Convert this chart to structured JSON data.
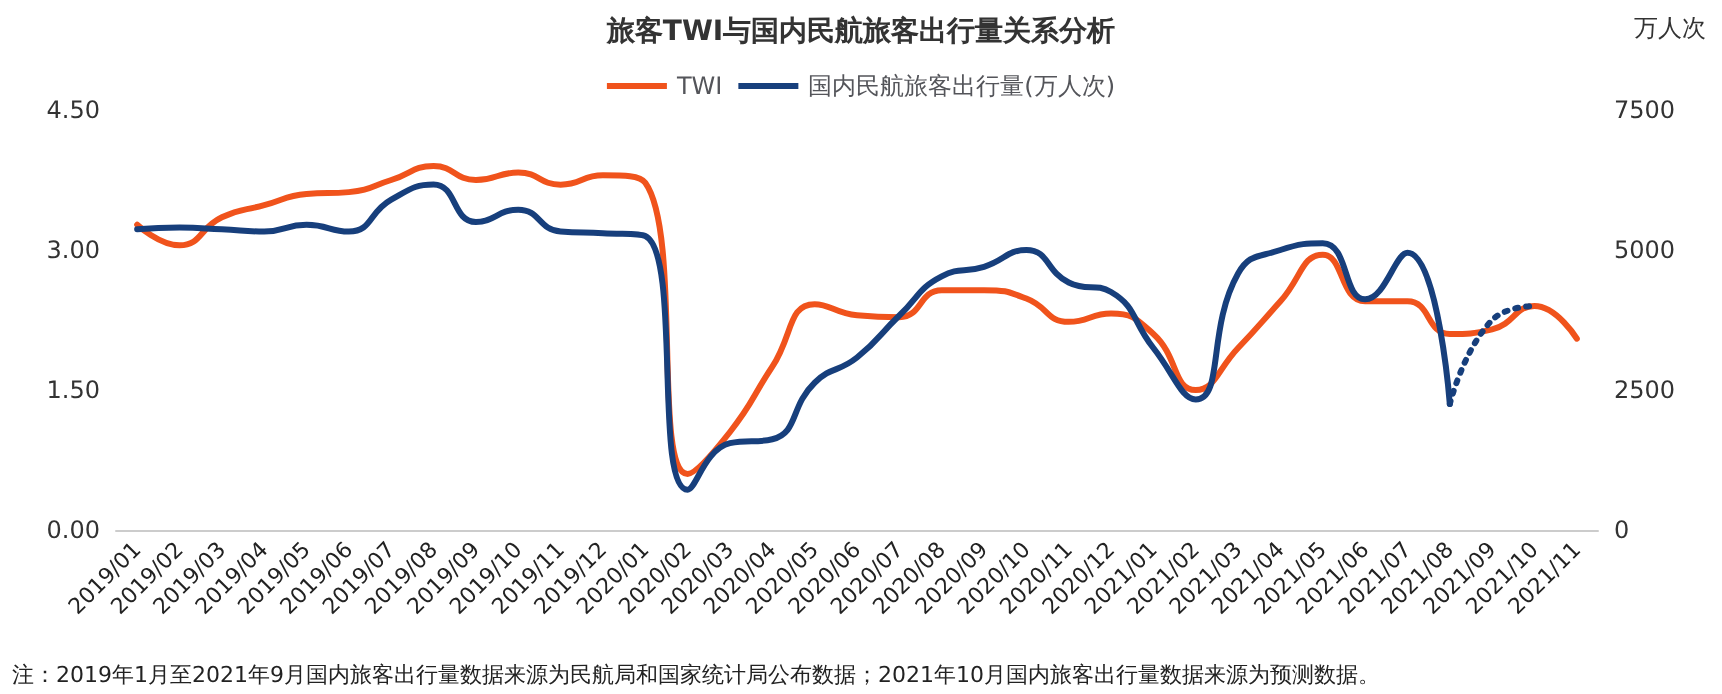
{
  "chart_data": {
    "type": "line",
    "title": "旅客TWI与国内民航旅客出行量关系分析",
    "y2label": "万人次",
    "categories": [
      "2019/01",
      "2019/02",
      "2019/03",
      "2019/04",
      "2019/05",
      "2019/06",
      "2019/07",
      "2019/08",
      "2019/09",
      "2019/10",
      "2019/11",
      "2019/12",
      "2020/01",
      "2020/02",
      "2020/03",
      "2020/04",
      "2020/05",
      "2020/06",
      "2020/07",
      "2020/08",
      "2020/09",
      "2020/10",
      "2020/11",
      "2020/12",
      "2021/01",
      "2021/02",
      "2021/03",
      "2021/04",
      "2021/05",
      "2021/06",
      "2021/07",
      "2021/08",
      "2021/09",
      "2021/10",
      "2021/11"
    ],
    "series": [
      {
        "name": "TWI",
        "color": "#f0531c",
        "line_style": "solid",
        "values": [
          3.27,
          3.05,
          3.35,
          3.48,
          3.6,
          3.62,
          3.75,
          3.9,
          3.75,
          3.83,
          3.7,
          3.8,
          3.72,
          0.6,
          1.05,
          1.75,
          2.42,
          2.3,
          2.28,
          2.57,
          2.57,
          2.48,
          2.23,
          2.32,
          2.1,
          1.5,
          1.95,
          2.45,
          2.95,
          2.45,
          2.45,
          2.1,
          2.15,
          2.4,
          2.05
        ]
      },
      {
        "name": "国内民航旅客出行量(万人次)",
        "color": "#173f7c",
        "axis": "y2",
        "line_style": "solid",
        "values": [
          5370,
          5400,
          5370,
          5330,
          5450,
          5330,
          5900,
          6170,
          5500,
          5720,
          5330,
          5300,
          5250,
          720,
          1550,
          1620,
          2630,
          3080,
          3830,
          4530,
          4700,
          5000,
          4420,
          4250,
          3250,
          2330,
          4580,
          5000,
          5120,
          4120,
          4950,
          2250,
          null,
          null,
          null
        ]
      },
      {
        "color": "#173f7c",
        "axis": "y2",
        "line_style": "dotted",
        "values": [
          null,
          null,
          null,
          null,
          null,
          null,
          null,
          null,
          null,
          null,
          null,
          null,
          null,
          null,
          null,
          null,
          null,
          null,
          null,
          null,
          null,
          null,
          null,
          null,
          null,
          null,
          null,
          null,
          null,
          null,
          null,
          2250,
          3750,
          4000,
          null
        ]
      }
    ],
    "ylim": [
      0,
      4.5
    ],
    "yticks": [
      {
        "value": 0,
        "label": "0.00"
      },
      {
        "value": 1.5,
        "label": "1.50"
      },
      {
        "value": 3,
        "label": "3.00"
      },
      {
        "value": 4.5,
        "label": "4.50"
      }
    ],
    "y2lim": [
      0,
      7500
    ],
    "y2ticks": [
      0,
      2500,
      5000,
      7500
    ],
    "grid": false,
    "legend": "top",
    "marker": "none",
    "annotations": [
      "注：2019年1月至2021年9月国内旅客出行量数据来源为民航局和国家统计局公布数据；2021年10月国内旅客出行量数据来源为预测数据。"
    ]
  }
}
